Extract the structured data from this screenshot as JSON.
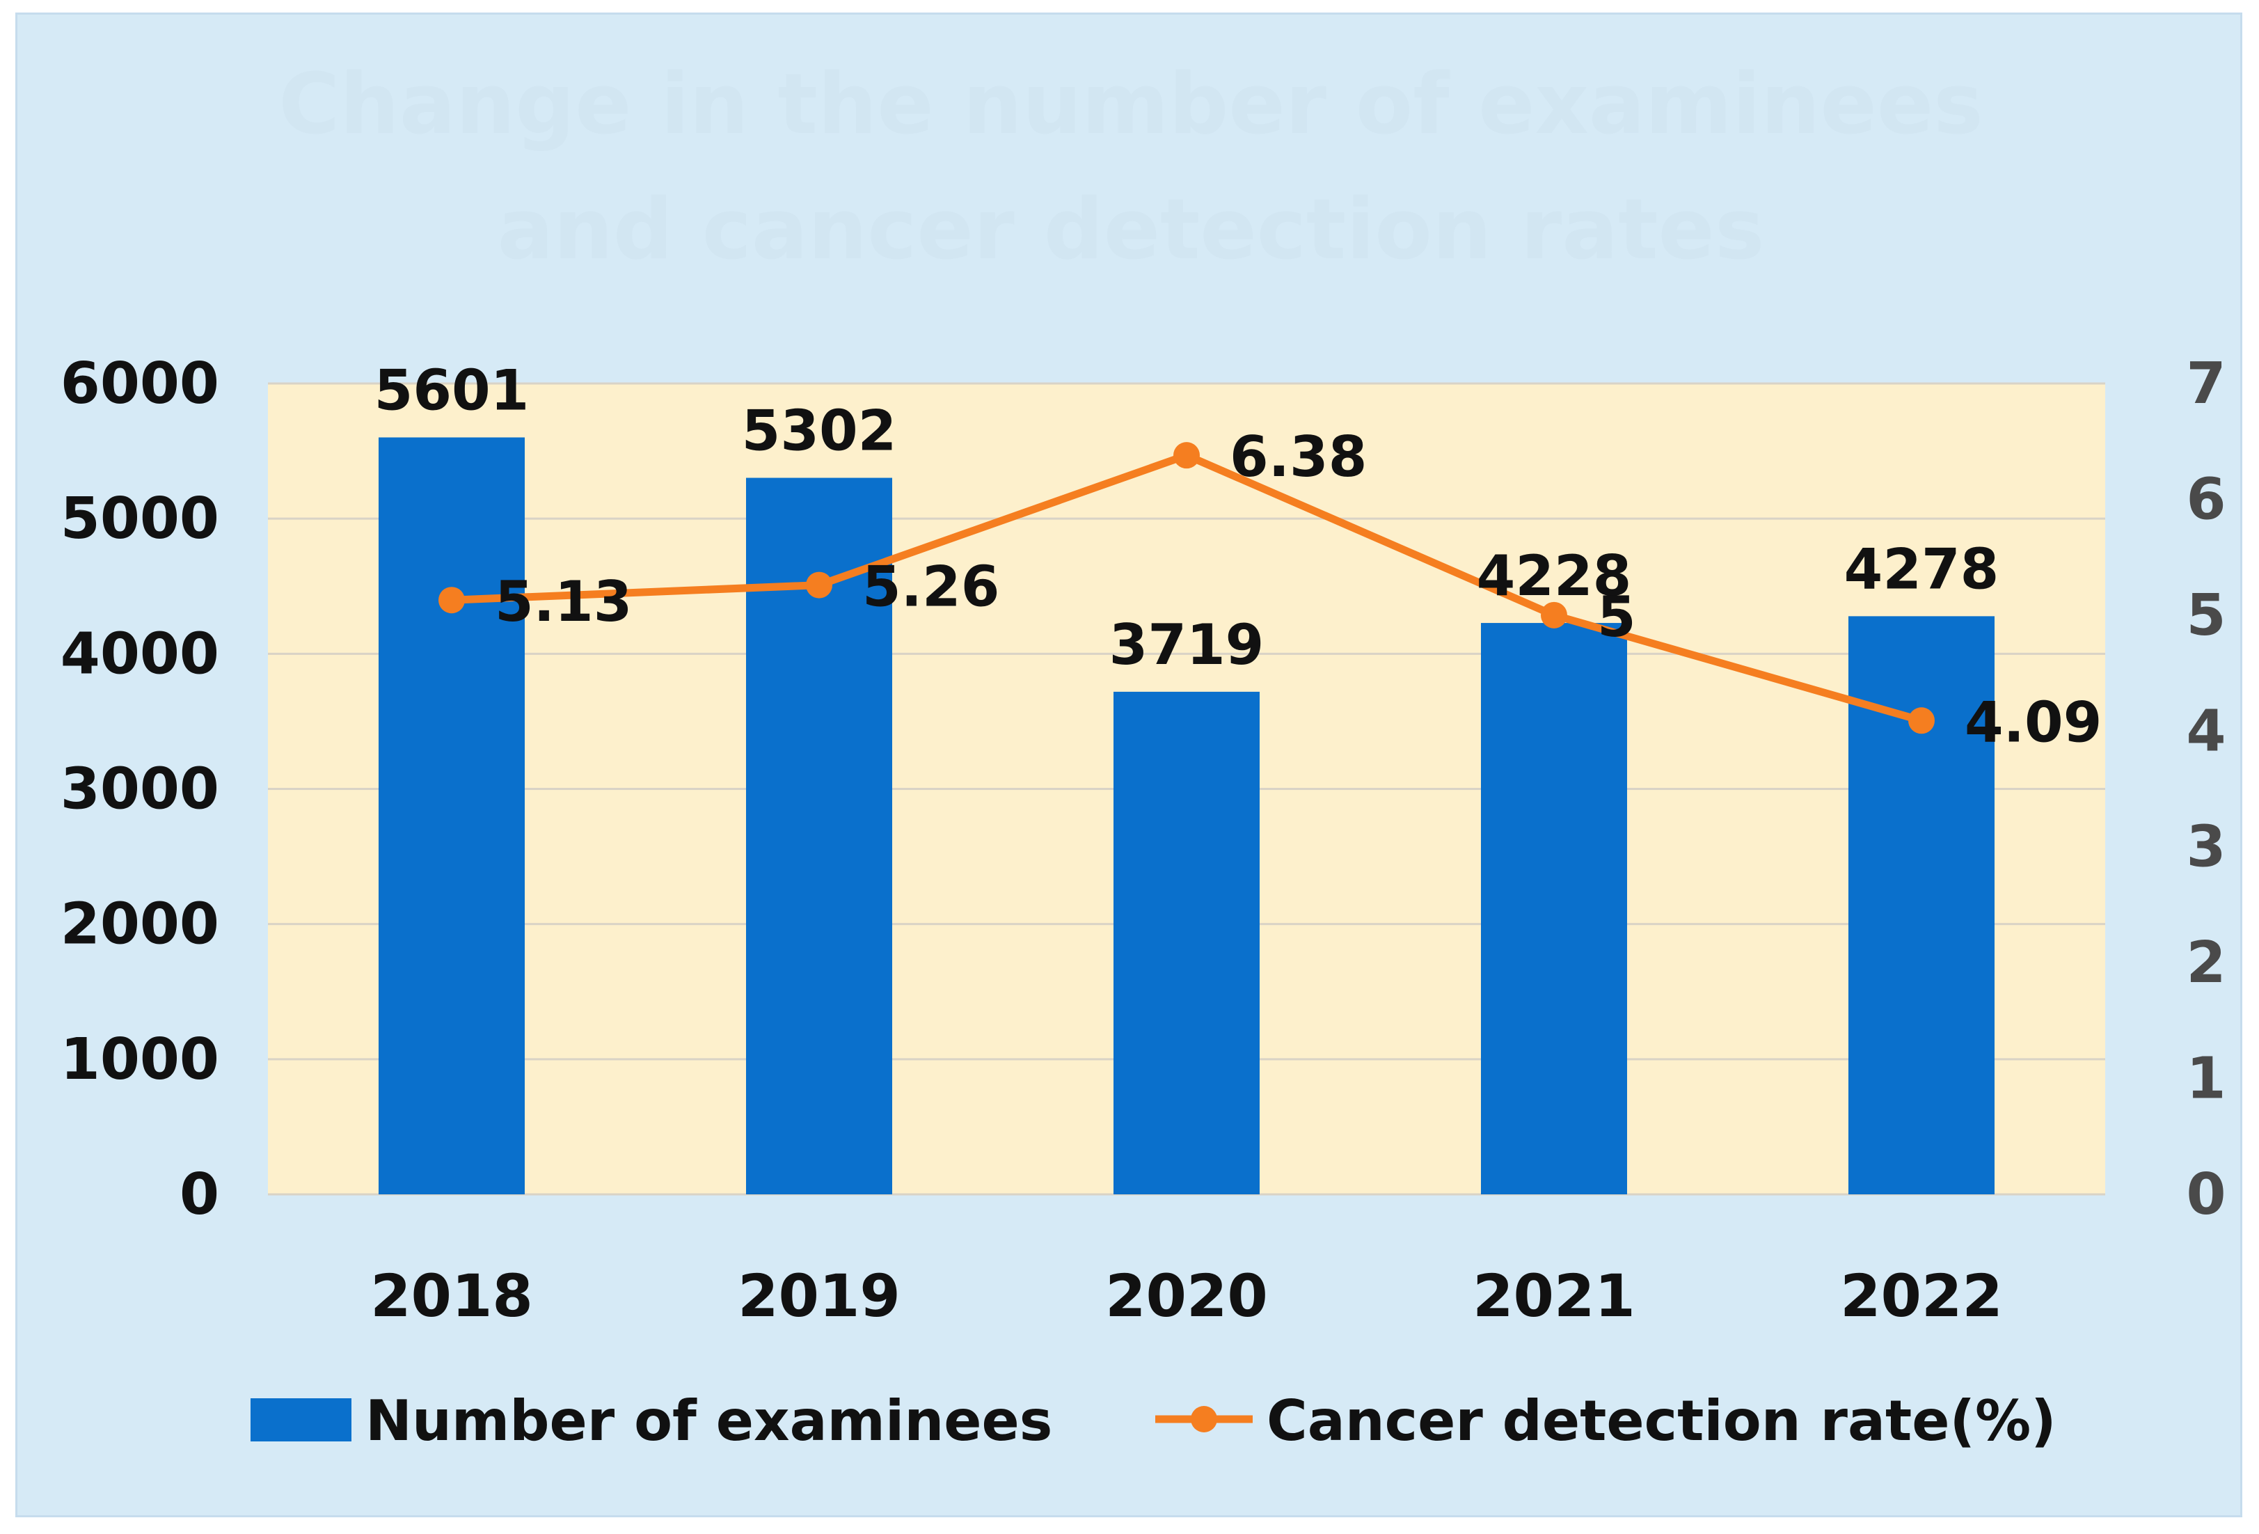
{
  "chart_data": {
    "type": "bar",
    "title": "Change in the number of examinees and cancer detection rates",
    "categories": [
      "2018",
      "2019",
      "2020",
      "2021",
      "2022"
    ],
    "series": [
      {
        "name": "Number of examinees",
        "kind": "bar",
        "axis": "left",
        "values": [
          5601,
          5302,
          3719,
          4228,
          4278
        ],
        "color": "#0a70cc"
      },
      {
        "name": "Cancer detection rate(%)",
        "kind": "line",
        "axis": "right",
        "values": [
          5.13,
          5.26,
          6.38,
          5,
          4.09
        ],
        "color": "#f57e20"
      }
    ],
    "left_axis": {
      "ylim": [
        0,
        6000
      ],
      "ticks": [
        "0",
        "1000",
        "2000",
        "3000",
        "4000",
        "5000",
        "6000"
      ]
    },
    "right_axis": {
      "ylim": [
        0,
        7
      ],
      "ticks": [
        "0",
        "1",
        "2",
        "3",
        "4",
        "5",
        "6",
        "7"
      ]
    },
    "grid": true,
    "legend": "bottom",
    "plot_background": "#fdf0cc",
    "frame_background": "#d6eaf6",
    "gridline_color": "#d9d3c6"
  }
}
